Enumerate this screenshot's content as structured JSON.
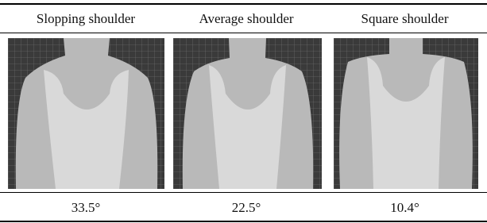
{
  "table": {
    "header": [
      "Slopping shoulder",
      "Average shoulder",
      "Square shoulder"
    ],
    "rows": [
      [
        "33.5°",
        "22.5°",
        "10.4°"
      ]
    ]
  }
}
